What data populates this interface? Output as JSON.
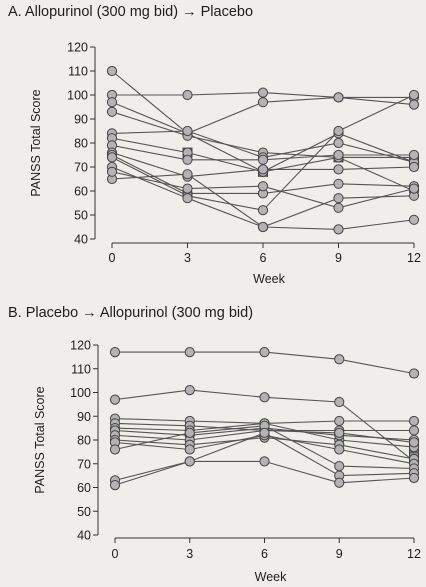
{
  "chart_data": [
    {
      "type": "line",
      "title": "A. Allopurinol (300 mg bid) → Placebo",
      "xlabel": "Week",
      "ylabel": "PANSS Total Score",
      "x": [
        0,
        3,
        6,
        9,
        12
      ],
      "xticks": [
        "0",
        "3",
        "6",
        "9",
        "12"
      ],
      "yticks": [
        "40",
        "50",
        "60",
        "70",
        "80",
        "90",
        "100",
        "110",
        "120"
      ],
      "ylim": [
        40,
        120
      ],
      "series": [
        {
          "values": [
            110,
            84,
            68,
            84,
            72
          ]
        },
        {
          "values": [
            100,
            100,
            101,
            99,
            99
          ]
        },
        {
          "values": [
            97,
            84,
            97,
            99,
            96
          ]
        },
        {
          "values": [
            93,
            83,
            76,
            74,
            74
          ]
        },
        {
          "values": [
            84,
            85,
            74,
            80,
            72
          ]
        },
        {
          "values": [
            82,
            76,
            68,
            74,
            60
          ]
        },
        {
          "values": [
            79,
            73,
            73,
            75,
            75
          ]
        },
        {
          "values": [
            76,
            66,
            69,
            69,
            70
          ]
        },
        {
          "values": [
            75,
            59,
            59,
            63,
            62
          ]
        },
        {
          "values": [
            74,
            58,
            52,
            85,
            100
          ]
        },
        {
          "values": [
            70,
            57,
            45,
            57,
            58
          ]
        },
        {
          "values": [
            65,
            67,
            45,
            44,
            48
          ]
        },
        {
          "values": [
            68,
            61,
            62,
            53,
            61
          ]
        }
      ],
      "square_markers": [
        [
          3,
          76
        ],
        [
          6,
          68
        ],
        [
          9,
          74
        ],
        [
          12,
          72
        ]
      ]
    },
    {
      "type": "line",
      "title": "B. Placebo → Allopurinol (300 mg bid)",
      "xlabel": "Week",
      "ylabel": "PANSS Total Score",
      "x": [
        0,
        3,
        6,
        9,
        12
      ],
      "xticks": [
        "0",
        "3",
        "6",
        "9",
        "12"
      ],
      "yticks": [
        "40",
        "50",
        "60",
        "70",
        "80",
        "90",
        "100",
        "110",
        "120"
      ],
      "ylim": [
        40,
        120
      ],
      "series": [
        {
          "values": [
            117,
            117,
            117,
            114,
            108
          ]
        },
        {
          "values": [
            97,
            101,
            98,
            96,
            71
          ]
        },
        {
          "values": [
            89,
            88,
            87,
            88,
            88
          ]
        },
        {
          "values": [
            87,
            86,
            84,
            84,
            84
          ]
        },
        {
          "values": [
            85,
            84,
            87,
            80,
            77
          ]
        },
        {
          "values": [
            84,
            82,
            85,
            82,
            80
          ]
        },
        {
          "values": [
            82,
            80,
            84,
            83,
            79
          ]
        },
        {
          "values": [
            80,
            78,
            81,
            78,
            72
          ]
        },
        {
          "values": [
            79,
            76,
            82,
            76,
            70
          ]
        },
        {
          "values": [
            76,
            83,
            86,
            69,
            68
          ]
        },
        {
          "values": [
            63,
            71,
            83,
            65,
            66
          ]
        },
        {
          "values": [
            61,
            71,
            71,
            62,
            64
          ]
        }
      ],
      "square_markers": [
        [
          12,
          78
        ],
        [
          12,
          75
        ],
        [
          12,
          73
        ]
      ]
    }
  ]
}
